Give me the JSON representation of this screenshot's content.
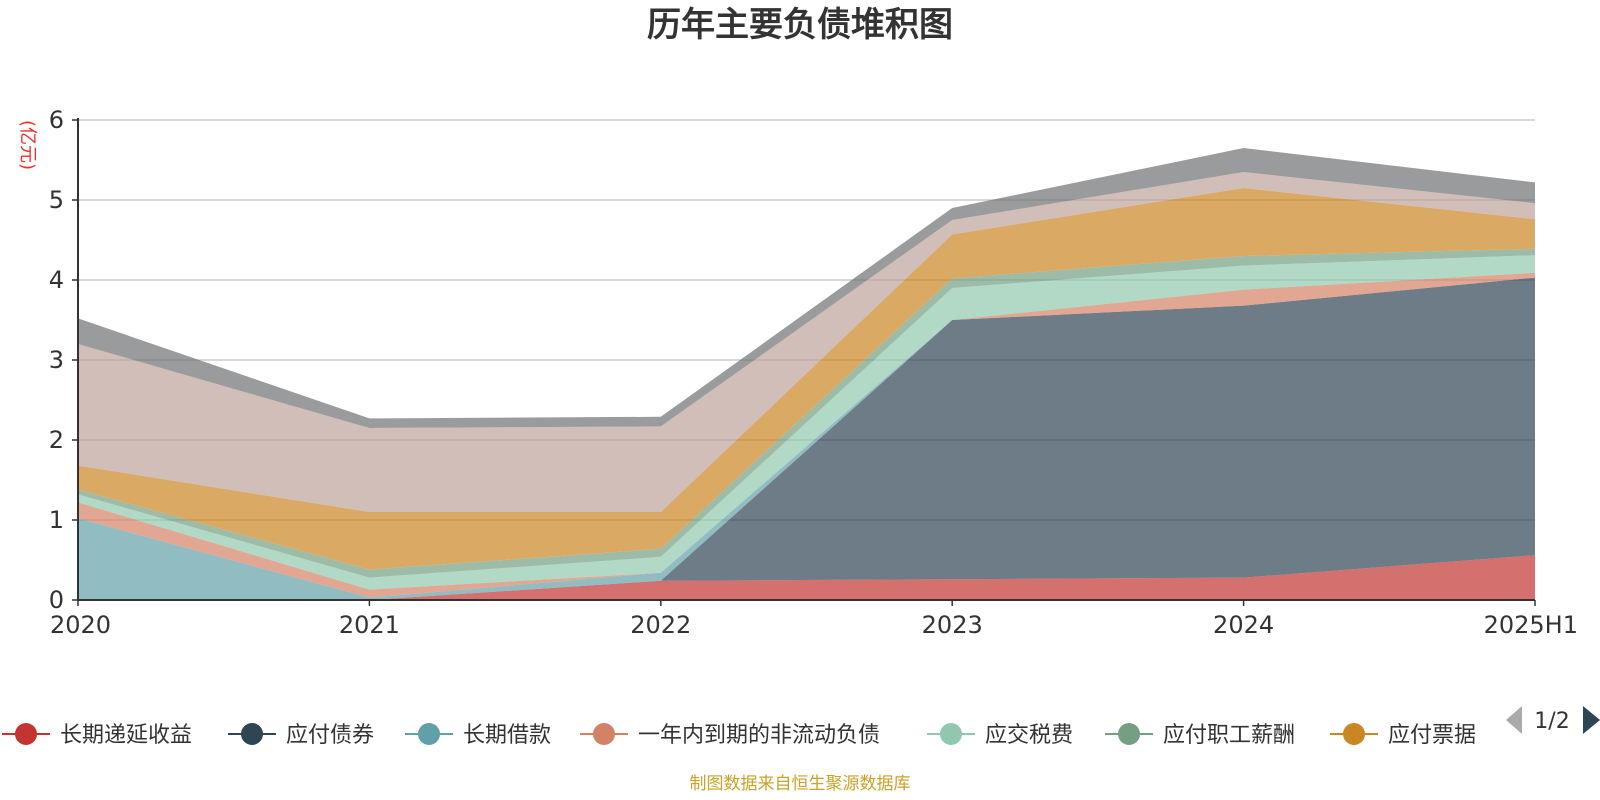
{
  "chart_data": {
    "type": "area",
    "title": "历年主要负债堆积图",
    "ylabel": "(亿元)",
    "xlabel": "",
    "categories": [
      "2020",
      "2021",
      "2022",
      "2023",
      "2024",
      "2025H1"
    ],
    "ylim": [
      0,
      6
    ],
    "yticks": [
      "0",
      "1",
      "2",
      "3",
      "4",
      "5",
      "6"
    ],
    "grid": true,
    "stacked": true,
    "series": [
      {
        "name": "长期递延收益",
        "color": "#c23531",
        "values": [
          0.0,
          0.0,
          0.24,
          0.26,
          0.28,
          0.56
        ]
      },
      {
        "name": "应付债券",
        "color": "#2f4554",
        "values": [
          0.0,
          0.0,
          0.0,
          3.24,
          3.4,
          3.47
        ]
      },
      {
        "name": "长期借款",
        "color": "#61a0a8",
        "values": [
          1.02,
          0.03,
          0.1,
          0.0,
          0.0,
          0.0
        ]
      },
      {
        "name": "一年内到期的非流动负债",
        "color": "#d48265",
        "values": [
          0.2,
          0.1,
          0.0,
          0.0,
          0.2,
          0.06
        ]
      },
      {
        "name": "应交税费",
        "color": "#91c7ae",
        "values": [
          0.1,
          0.15,
          0.2,
          0.4,
          0.3,
          0.22
        ]
      },
      {
        "name": "应付职工薪酬",
        "color": "#749f83",
        "values": [
          0.06,
          0.1,
          0.1,
          0.12,
          0.12,
          0.08
        ]
      },
      {
        "name": "应付票据",
        "color": "#ca8622",
        "values": [
          0.3,
          0.72,
          0.46,
          0.55,
          0.85,
          0.37
        ]
      },
      {
        "name": "",
        "color": "#bda29a",
        "values": [
          1.52,
          1.05,
          1.07,
          0.18,
          0.2,
          0.2
        ]
      },
      {
        "name": "",
        "color": "#6e7074",
        "values": [
          0.32,
          0.12,
          0.12,
          0.15,
          0.3,
          0.26
        ]
      }
    ]
  },
  "legend": {
    "pager": "1/2"
  },
  "footer": {
    "source": "制图数据来自恒生聚源数据库"
  }
}
